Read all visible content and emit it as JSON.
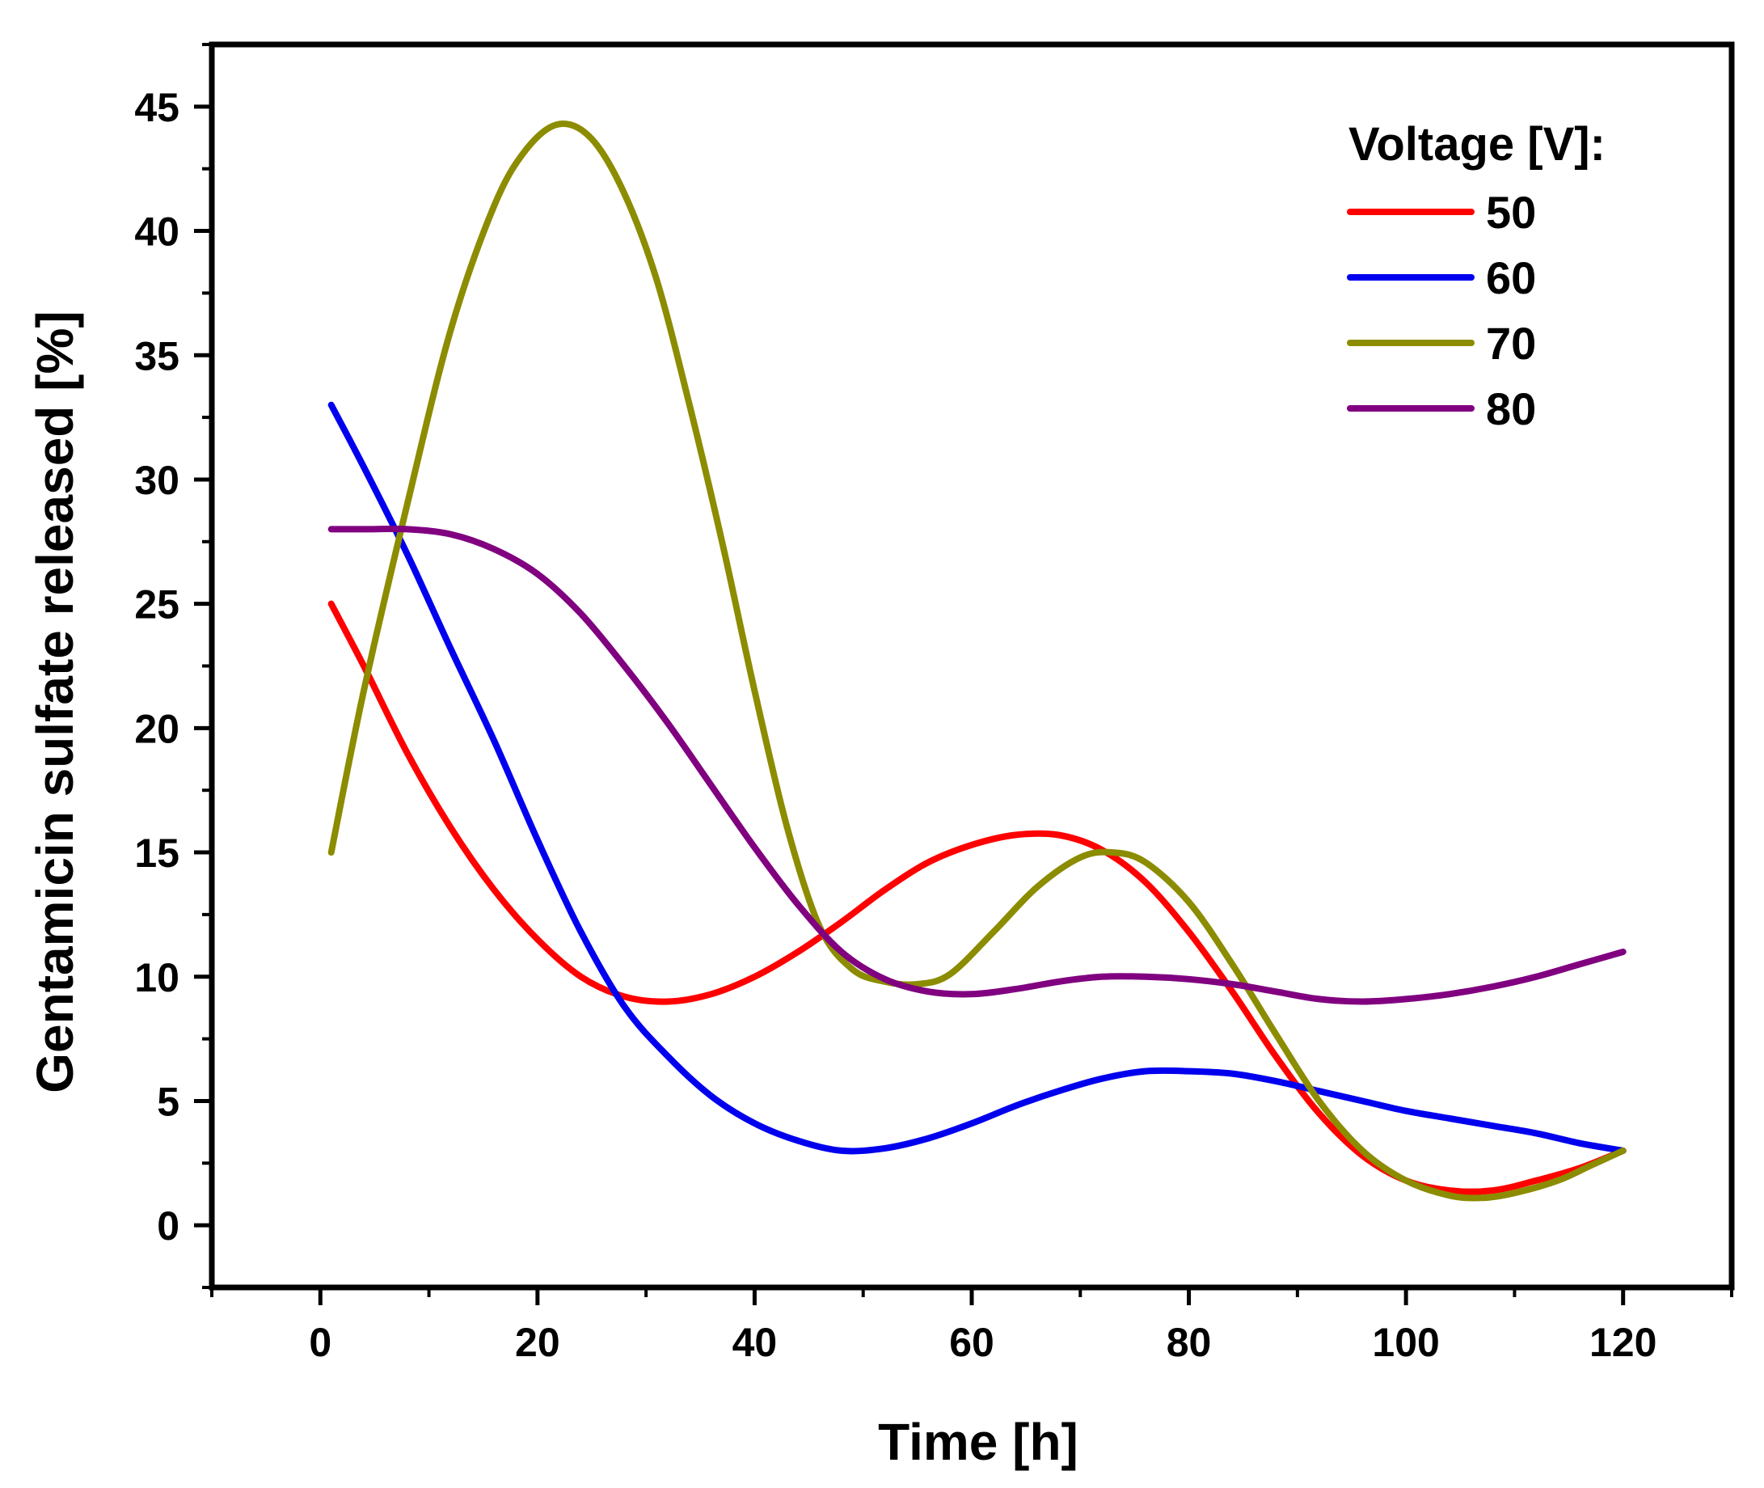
{
  "chart_data": {
    "type": "line",
    "title": "",
    "xlabel": "Time [h]",
    "ylabel": "Gentamicin sulfate released [%]",
    "xlim": [
      -10,
      130
    ],
    "ylim": [
      -2.5,
      47.5
    ],
    "xticks": [
      0,
      20,
      40,
      60,
      80,
      100,
      120
    ],
    "yticks": [
      0,
      5,
      10,
      15,
      20,
      25,
      30,
      35,
      40,
      45
    ],
    "grid": false,
    "legend": {
      "title": "Voltage [V]:",
      "position": "top-right"
    },
    "series": [
      {
        "name": "50",
        "color": "#ff0000",
        "points": [
          [
            1,
            25
          ],
          [
            4,
            22.5
          ],
          [
            8,
            19
          ],
          [
            12,
            16
          ],
          [
            16,
            13.5
          ],
          [
            20,
            11.5
          ],
          [
            24,
            10
          ],
          [
            28,
            9.2
          ],
          [
            32,
            9
          ],
          [
            36,
            9.3
          ],
          [
            40,
            10
          ],
          [
            44,
            11
          ],
          [
            48,
            12.2
          ],
          [
            52,
            13.5
          ],
          [
            56,
            14.6
          ],
          [
            60,
            15.3
          ],
          [
            64,
            15.7
          ],
          [
            68,
            15.7
          ],
          [
            72,
            15.1
          ],
          [
            76,
            13.8
          ],
          [
            80,
            11.8
          ],
          [
            84,
            9.4
          ],
          [
            88,
            6.8
          ],
          [
            92,
            4.5
          ],
          [
            96,
            2.8
          ],
          [
            100,
            1.8
          ],
          [
            104,
            1.4
          ],
          [
            108,
            1.4
          ],
          [
            112,
            1.8
          ],
          [
            116,
            2.3
          ],
          [
            120,
            3
          ]
        ]
      },
      {
        "name": "60",
        "color": "#0000ee",
        "points": [
          [
            1,
            33
          ],
          [
            4,
            30.5
          ],
          [
            8,
            27
          ],
          [
            12,
            23.2
          ],
          [
            16,
            19.5
          ],
          [
            20,
            15.5
          ],
          [
            24,
            11.8
          ],
          [
            28,
            8.8
          ],
          [
            32,
            6.8
          ],
          [
            36,
            5.2
          ],
          [
            40,
            4.1
          ],
          [
            44,
            3.4
          ],
          [
            48,
            3
          ],
          [
            52,
            3.1
          ],
          [
            56,
            3.5
          ],
          [
            60,
            4.1
          ],
          [
            64,
            4.8
          ],
          [
            68,
            5.4
          ],
          [
            72,
            5.9
          ],
          [
            76,
            6.2
          ],
          [
            80,
            6.2
          ],
          [
            84,
            6.1
          ],
          [
            88,
            5.8
          ],
          [
            92,
            5.4
          ],
          [
            96,
            5
          ],
          [
            100,
            4.6
          ],
          [
            104,
            4.3
          ],
          [
            108,
            4
          ],
          [
            112,
            3.7
          ],
          [
            116,
            3.3
          ],
          [
            120,
            3
          ]
        ]
      },
      {
        "name": "70",
        "color": "#8c8c00",
        "points": [
          [
            1,
            15
          ],
          [
            4,
            21.5
          ],
          [
            8,
            29
          ],
          [
            12,
            36
          ],
          [
            16,
            41
          ],
          [
            19,
            43.3
          ],
          [
            22,
            44.3
          ],
          [
            25,
            43.7
          ],
          [
            28,
            41.5
          ],
          [
            31,
            38
          ],
          [
            34,
            33
          ],
          [
            37,
            27.5
          ],
          [
            40,
            21.5
          ],
          [
            43,
            16
          ],
          [
            46,
            12
          ],
          [
            49,
            10.3
          ],
          [
            52,
            9.8
          ],
          [
            55,
            9.7
          ],
          [
            58,
            10.1
          ],
          [
            62,
            11.8
          ],
          [
            66,
            13.6
          ],
          [
            70,
            14.8
          ],
          [
            73,
            15
          ],
          [
            76,
            14.6
          ],
          [
            80,
            13
          ],
          [
            84,
            10.5
          ],
          [
            88,
            7.7
          ],
          [
            92,
            5
          ],
          [
            96,
            3
          ],
          [
            100,
            1.8
          ],
          [
            104,
            1.2
          ],
          [
            107,
            1.1
          ],
          [
            110,
            1.3
          ],
          [
            114,
            1.8
          ],
          [
            117,
            2.4
          ],
          [
            120,
            3
          ]
        ]
      },
      {
        "name": "80",
        "color": "#800080",
        "points": [
          [
            1,
            28
          ],
          [
            4,
            28
          ],
          [
            8,
            28
          ],
          [
            12,
            27.8
          ],
          [
            16,
            27.2
          ],
          [
            20,
            26.2
          ],
          [
            24,
            24.6
          ],
          [
            28,
            22.5
          ],
          [
            32,
            20.2
          ],
          [
            36,
            17.7
          ],
          [
            40,
            15.2
          ],
          [
            44,
            12.9
          ],
          [
            48,
            11
          ],
          [
            52,
            9.9
          ],
          [
            56,
            9.4
          ],
          [
            60,
            9.3
          ],
          [
            64,
            9.5
          ],
          [
            68,
            9.8
          ],
          [
            72,
            10
          ],
          [
            76,
            10
          ],
          [
            80,
            9.9
          ],
          [
            84,
            9.7
          ],
          [
            88,
            9.4
          ],
          [
            92,
            9.1
          ],
          [
            96,
            9
          ],
          [
            100,
            9.1
          ],
          [
            104,
            9.3
          ],
          [
            108,
            9.6
          ],
          [
            112,
            10
          ],
          [
            116,
            10.5
          ],
          [
            120,
            11
          ]
        ]
      }
    ]
  }
}
